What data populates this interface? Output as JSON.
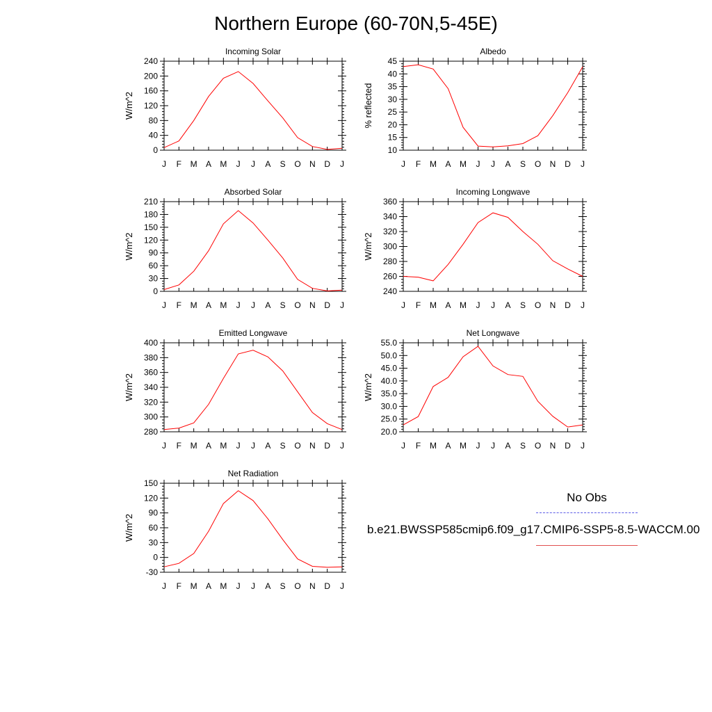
{
  "title": "Northern Europe (60-70N,5-45E)",
  "colors": {
    "model": "#ff0000",
    "obs": "#5a5ae6",
    "axis": "#000000"
  },
  "legend": {
    "obs_label": "No Obs",
    "model_label": "b.e21.BWSSP585cmip6.f09_g17.CMIP6-SSP5-8.5-WACCM.00"
  },
  "chart_data": [
    {
      "type": "line",
      "title": "Incoming Solar",
      "ylabel": "W/m^2",
      "categories": [
        "J",
        "F",
        "M",
        "A",
        "M",
        "J",
        "J",
        "A",
        "S",
        "O",
        "N",
        "D",
        "J"
      ],
      "ylim": [
        0,
        240
      ],
      "yticks": [
        "0",
        "40",
        "80",
        "120",
        "160",
        "200",
        "240"
      ],
      "series": [
        {
          "values": [
            7,
            25,
            80,
            145,
            194,
            212,
            180,
            133,
            87,
            34,
            10,
            2,
            5
          ]
        }
      ]
    },
    {
      "type": "line",
      "title": "Albedo",
      "ylabel": "% reflected",
      "categories": [
        "J",
        "F",
        "M",
        "A",
        "M",
        "J",
        "J",
        "A",
        "S",
        "O",
        "N",
        "D",
        "J"
      ],
      "ylim": [
        10,
        45
      ],
      "yticks": [
        "10",
        "15",
        "20",
        "25",
        "30",
        "35",
        "40",
        "45"
      ],
      "series": [
        {
          "values": [
            42.9,
            43.6,
            41.9,
            34.2,
            19.0,
            11.6,
            11.3,
            11.7,
            12.6,
            15.7,
            23.6,
            32.6,
            42.8
          ]
        }
      ]
    },
    {
      "type": "line",
      "title": "Absorbed Solar",
      "ylabel": "W/m^2",
      "categories": [
        "J",
        "F",
        "M",
        "A",
        "M",
        "J",
        "J",
        "A",
        "S",
        "O",
        "N",
        "D",
        "J"
      ],
      "ylim": [
        0,
        210
      ],
      "yticks": [
        "0",
        "30",
        "60",
        "90",
        "120",
        "150",
        "180",
        "210"
      ],
      "series": [
        {
          "values": [
            4,
            15,
            47,
            95,
            158,
            189,
            160,
            120,
            78,
            28,
            7,
            1,
            3
          ]
        }
      ]
    },
    {
      "type": "line",
      "title": "Incoming Longwave",
      "ylabel": "W/m^2",
      "categories": [
        "J",
        "F",
        "M",
        "A",
        "M",
        "J",
        "J",
        "A",
        "S",
        "O",
        "N",
        "D",
        "J"
      ],
      "ylim": [
        240,
        360
      ],
      "yticks": [
        "240",
        "260",
        "280",
        "300",
        "320",
        "340",
        "360"
      ],
      "series": [
        {
          "values": [
            260,
            259,
            254,
            276,
            303,
            332,
            345,
            339,
            320,
            303,
            281,
            270,
            260
          ]
        }
      ]
    },
    {
      "type": "line",
      "title": "Emitted Longwave",
      "ylabel": "W/m^2",
      "categories": [
        "J",
        "F",
        "M",
        "A",
        "M",
        "J",
        "J",
        "A",
        "S",
        "O",
        "N",
        "D",
        "J"
      ],
      "ylim": [
        280,
        400
      ],
      "yticks": [
        "280",
        "300",
        "320",
        "340",
        "360",
        "380",
        "400"
      ],
      "series": [
        {
          "values": [
            283,
            285,
            292,
            317,
            352,
            385,
            390,
            381,
            362,
            334,
            306,
            291,
            283
          ]
        }
      ]
    },
    {
      "type": "line",
      "title": "Net Longwave",
      "ylabel": "W/m^2",
      "categories": [
        "J",
        "F",
        "M",
        "A",
        "M",
        "J",
        "J",
        "A",
        "S",
        "O",
        "N",
        "D",
        "J"
      ],
      "ylim": [
        20,
        55
      ],
      "yticks": [
        "20.0",
        "25.0",
        "30.0",
        "35.0",
        "40.0",
        "45.0",
        "50.0",
        "55.0"
      ],
      "series": [
        {
          "values": [
            22.7,
            26.0,
            37.8,
            41.4,
            49.5,
            53.6,
            45.9,
            42.5,
            41.8,
            32.0,
            26.1,
            21.9,
            22.7
          ]
        }
      ]
    },
    {
      "type": "line",
      "title": "Net Radiation",
      "ylabel": "W/m^2",
      "categories": [
        "J",
        "F",
        "M",
        "A",
        "M",
        "J",
        "J",
        "A",
        "S",
        "O",
        "N",
        "D",
        "J"
      ],
      "ylim": [
        -30,
        150
      ],
      "yticks": [
        "-30",
        "0",
        "30",
        "60",
        "90",
        "120",
        "150"
      ],
      "series": [
        {
          "values": [
            -19,
            -12,
            8,
            53,
            109,
            135,
            115,
            78,
            36,
            -3,
            -18,
            -20,
            -19
          ]
        }
      ]
    }
  ]
}
